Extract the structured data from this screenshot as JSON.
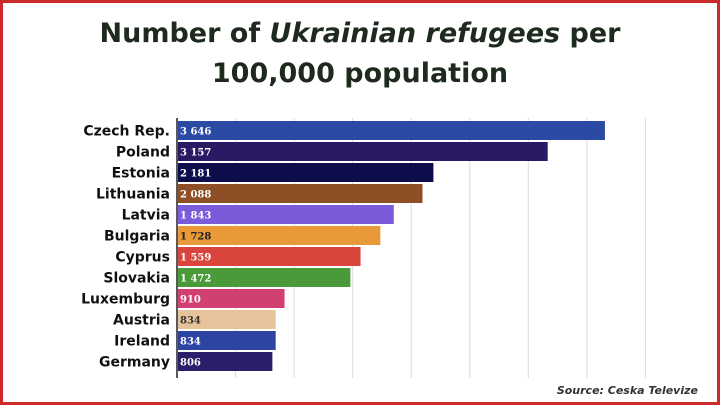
{
  "title": {
    "part1": "Number of ",
    "emphasis": "Ukrainian refugees",
    "part2": " per",
    "line2": "100,000 population"
  },
  "source": "Source: Ceska Televize",
  "chart_data": {
    "type": "bar",
    "orientation": "horizontal",
    "title": "Number of Ukrainian refugees per 100,000 population",
    "categories": [
      "Czech Rep.",
      "Poland",
      "Estonia",
      "Lithuania",
      "Latvia",
      "Bulgaria",
      "Cyprus",
      "Slovakia",
      "Luxemburg",
      "Austria",
      "Ireland",
      "Germany"
    ],
    "values": [
      3646,
      3157,
      2181,
      2088,
      1843,
      1728,
      1559,
      1472,
      910,
      834,
      834,
      806
    ],
    "value_labels": [
      "3 646",
      "3 157",
      "2 181",
      "2 088",
      "1 843",
      "1 728",
      "1 559",
      "1 472",
      "910",
      "834",
      "834",
      "806"
    ],
    "colors": [
      "#2b4aa3",
      "#2a1a63",
      "#0e0d4c",
      "#8e4f27",
      "#7b5bd9",
      "#e8993a",
      "#d9443c",
      "#4a9a3a",
      "#d23f72",
      "#e6c39a",
      "#2d44a2",
      "#2a1f6b"
    ],
    "label_colors": [
      "#ffffff",
      "#ffffff",
      "#ffffff",
      "#ffffff",
      "#ffffff",
      "#222222",
      "#ffffff",
      "#ffffff",
      "#ffffff",
      "#333333",
      "#ffffff",
      "#ffffff"
    ],
    "xlim": [
      0,
      4000
    ],
    "grid": true
  }
}
